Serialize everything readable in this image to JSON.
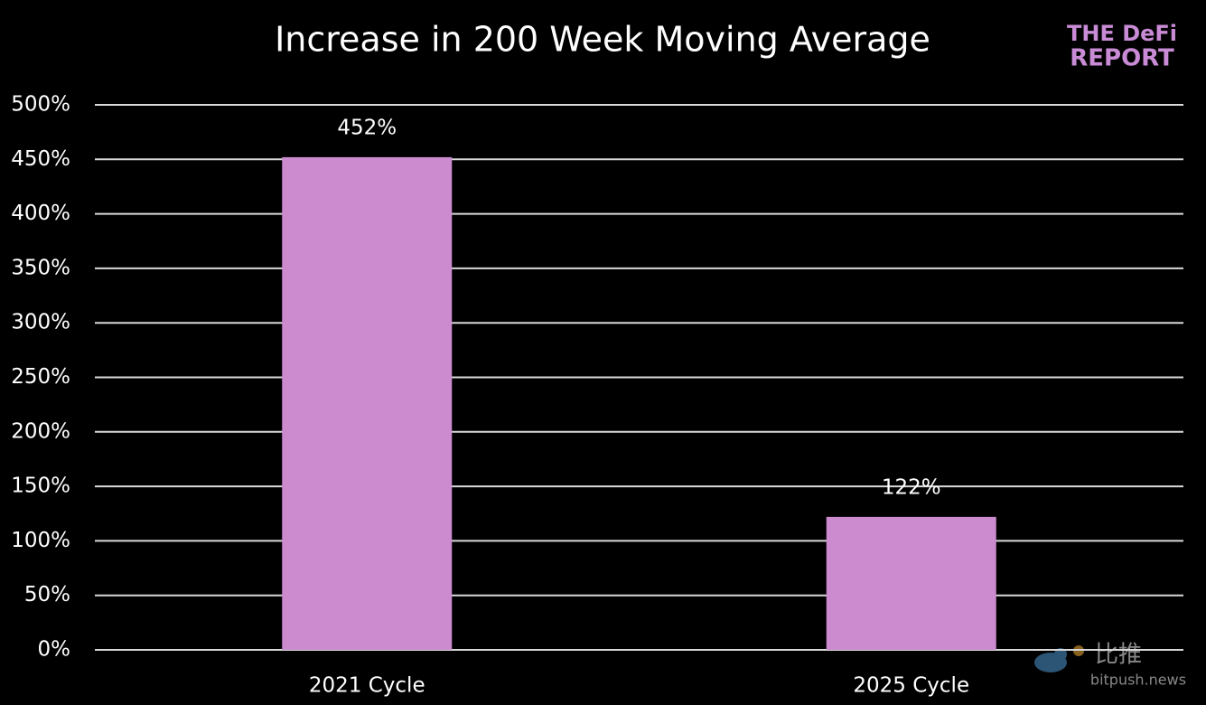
{
  "chart_data": {
    "type": "bar",
    "title": "Increase in 200 Week Moving Average",
    "categories": [
      "2021 Cycle",
      "2025 Cycle"
    ],
    "values": [
      452,
      122
    ],
    "value_labels": [
      "452%",
      "122%"
    ],
    "color": "#cd8bcf",
    "ylim": [
      0,
      500
    ],
    "yticks": [
      {
        "value": 0,
        "label": "0%"
      },
      {
        "value": 50,
        "label": "50%"
      },
      {
        "value": 100,
        "label": "100%"
      },
      {
        "value": 150,
        "label": "150%"
      },
      {
        "value": 200,
        "label": "200%"
      },
      {
        "value": 250,
        "label": "250%"
      },
      {
        "value": 300,
        "label": "300%"
      },
      {
        "value": 350,
        "label": "350%"
      },
      {
        "value": 400,
        "label": "400%"
      },
      {
        "value": 450,
        "label": "450%"
      },
      {
        "value": 500,
        "label": "500%"
      }
    ],
    "grid": true
  },
  "logo": {
    "line1": "THE DeFi",
    "line2": "REPORT"
  },
  "watermark": {
    "name": "比推",
    "site": "bitpush.news"
  }
}
